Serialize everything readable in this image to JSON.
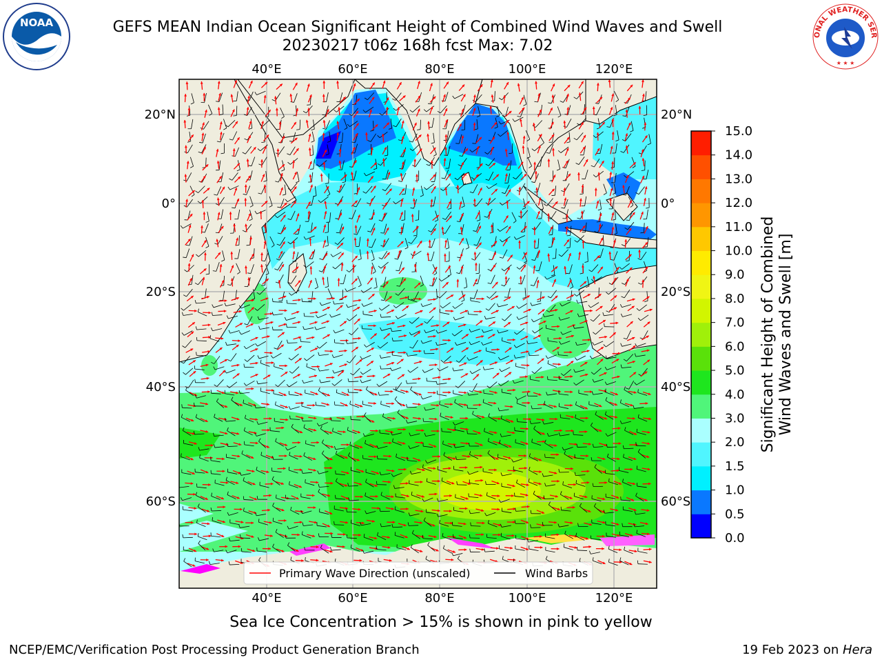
{
  "title_line1": "GEFS MEAN Indian Ocean Significant Height of Combined Wind Waves and Swell",
  "title_line2": "20230217 t06z 168h fcst   Max: 7.02",
  "lon_labels": [
    "40°E",
    "60°E",
    "80°E",
    "100°E",
    "120°E"
  ],
  "lat_labels": [
    "20°N",
    "0°",
    "20°S",
    "40°S",
    "60°S"
  ],
  "colorbar": {
    "label_line1": "Significant Height of Combined",
    "label_line2": "Wind Waves and Swell [m]",
    "ticks": [
      "0.0",
      "0.5",
      "1.0",
      "1.5",
      "2.0",
      "3.0",
      "4.0",
      "5.0",
      "6.0",
      "7.0",
      "8.0",
      "9.0",
      "10.0",
      "11.0",
      "12.0",
      "13.0",
      "14.0",
      "15.0"
    ],
    "colors": [
      "#0000ff",
      "#0a78ff",
      "#00f0ff",
      "#50f5ff",
      "#aaffff",
      "#50f57a",
      "#1ee61e",
      "#5ae10a",
      "#a0f00a",
      "#d2f500",
      "#f0f514",
      "#ffeb00",
      "#ffc800",
      "#ff9600",
      "#ff7800",
      "#ff5000",
      "#ff1e00"
    ]
  },
  "legend": {
    "wave_label": "Primary Wave Direction (unscaled)",
    "wind_label": "Wind Barbs",
    "wave_color": "#ff0000",
    "wind_color": "#000000"
  },
  "ice_note": "Sea Ice Concentration > 15% is shown in pink to yellow",
  "footer_left": "NCEP/EMC/Verification Post Processing Product Generation Branch",
  "footer_date": "19 Feb 2023 on ",
  "footer_host": "Hera",
  "logos": {
    "left": "NOAA",
    "right": "NATIONAL WEATHER SERVICE"
  },
  "colors": {
    "land": "#efedde",
    "grid": "#b4b4b4"
  }
}
